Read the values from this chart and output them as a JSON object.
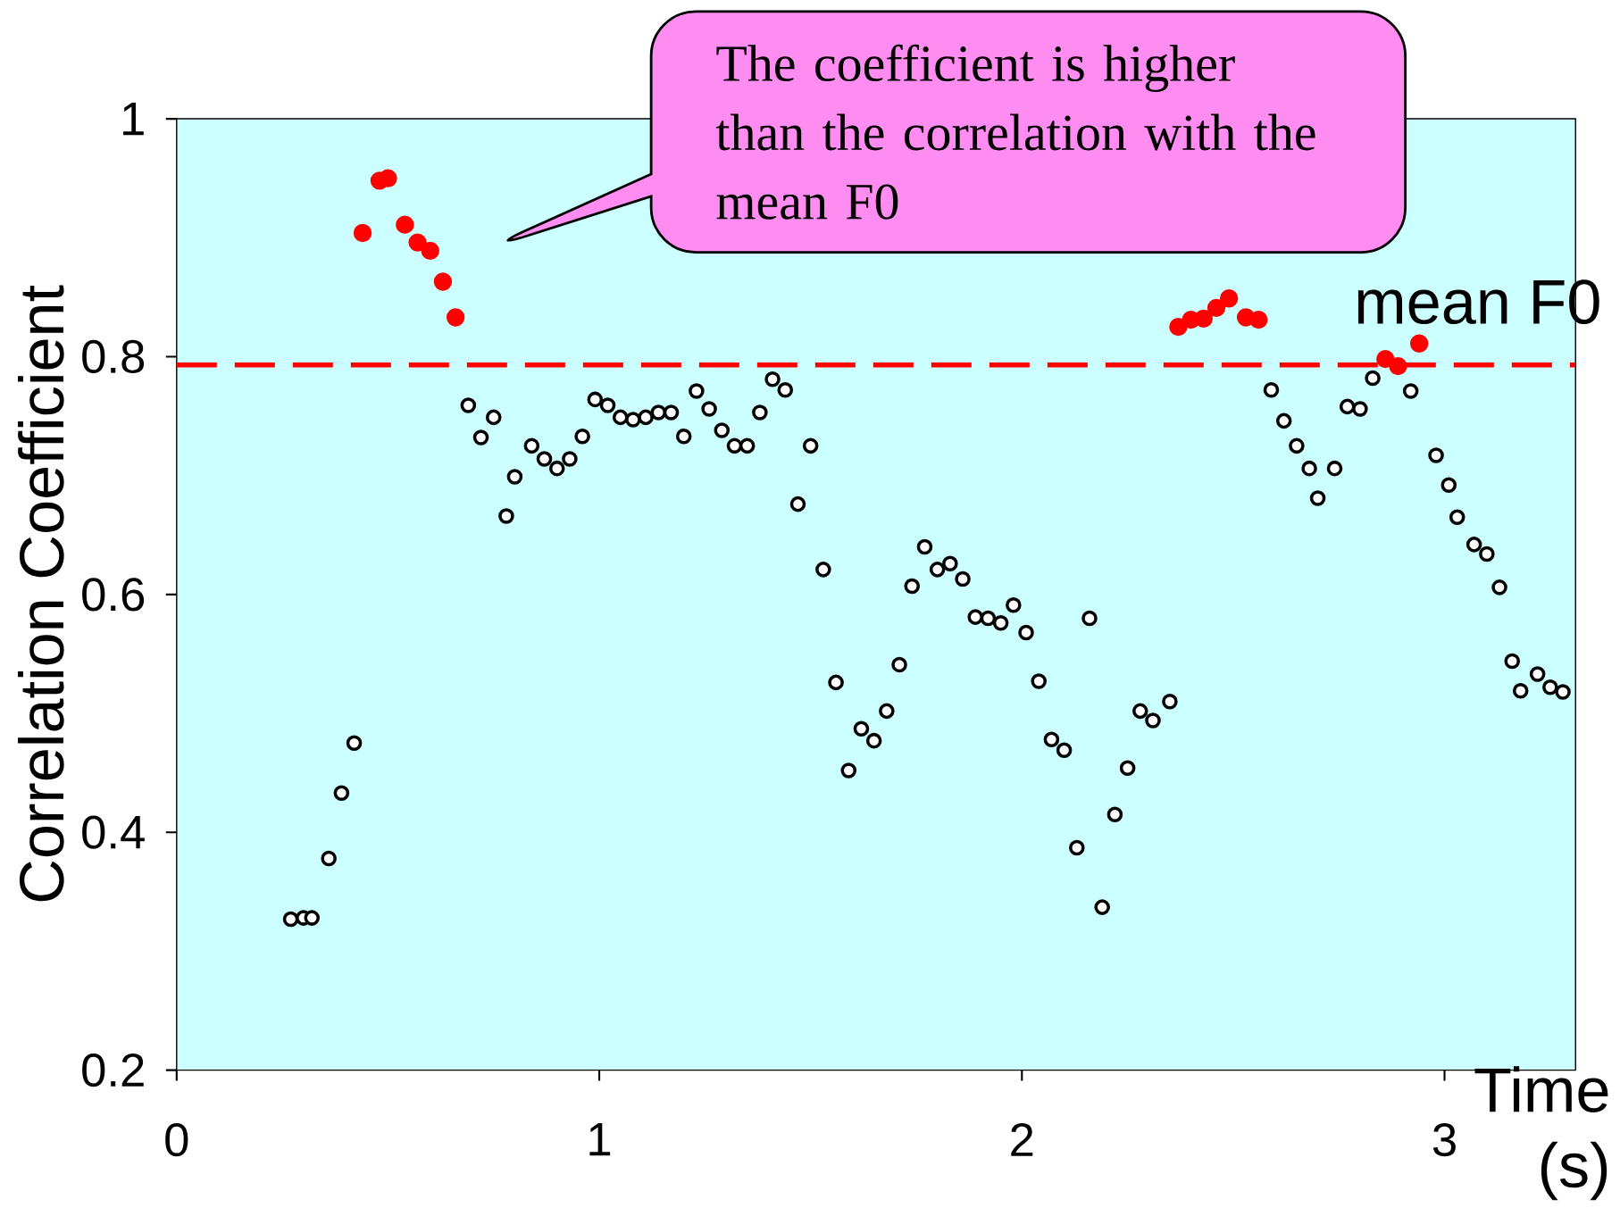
{
  "chart_data": {
    "type": "scatter",
    "xlabel": "Time (s)",
    "ylabel": "Correlation Coefficient",
    "xlim": [
      0,
      3.31
    ],
    "ylim": [
      0.2,
      1
    ],
    "xticks": [
      0,
      1,
      2,
      3
    ],
    "yticks": [
      0.2,
      0.4,
      0.6,
      0.8,
      1
    ],
    "marker": "circle",
    "grid": false,
    "ref_lines": [
      {
        "axis": "y",
        "value": 0.793,
        "label": "mean F0",
        "color": "#ff0000",
        "line_style": "dashed"
      }
    ],
    "annotations": [
      "The coefficient is higher than the correlation with the mean F0"
    ],
    "series": [
      {
        "color": "#ff0000",
        "x": [
          0.44,
          0.48,
          0.5,
          0.54,
          0.57,
          0.6,
          0.63,
          0.66,
          2.37,
          2.4,
          2.43,
          2.46,
          2.49,
          2.53,
          2.56,
          2.86,
          2.89,
          2.94
        ],
        "values": [
          0.904,
          0.948,
          0.95,
          0.911,
          0.896,
          0.889,
          0.863,
          0.833,
          0.825,
          0.831,
          0.832,
          0.841,
          0.849,
          0.833,
          0.831,
          0.798,
          0.792,
          0.811
        ]
      },
      {
        "color": "#000000",
        "x": [
          0.27,
          0.3,
          0.32,
          0.36,
          0.39,
          0.42,
          0.69,
          0.72,
          0.75,
          0.78,
          0.8,
          0.84,
          0.87,
          0.9,
          0.93,
          0.96,
          0.99,
          1.02,
          1.05,
          1.08,
          1.11,
          1.14,
          1.17,
          1.2,
          1.23,
          1.26,
          1.29,
          1.32,
          1.35,
          1.38,
          1.41,
          1.44,
          1.47,
          1.5,
          1.53,
          1.56,
          1.59,
          1.62,
          1.65,
          1.68,
          1.71,
          1.74,
          1.77,
          1.8,
          1.83,
          1.86,
          1.89,
          1.92,
          1.95,
          1.98,
          2.01,
          2.04,
          2.07,
          2.1,
          2.13,
          2.16,
          2.19,
          2.22,
          2.25,
          2.28,
          2.31,
          2.35,
          2.59,
          2.62,
          2.65,
          2.68,
          2.7,
          2.74,
          2.77,
          2.8,
          2.83,
          2.92,
          2.98,
          3.01,
          3.03,
          3.07,
          3.1,
          3.13,
          3.16,
          3.18,
          3.22,
          3.25,
          3.28
        ],
        "values": [
          0.327,
          0.328,
          0.328,
          0.378,
          0.433,
          0.475,
          0.759,
          0.732,
          0.749,
          0.666,
          0.699,
          0.725,
          0.714,
          0.706,
          0.714,
          0.733,
          0.764,
          0.759,
          0.749,
          0.747,
          0.749,
          0.753,
          0.753,
          0.733,
          0.771,
          0.756,
          0.738,
          0.725,
          0.725,
          0.753,
          0.781,
          0.772,
          0.676,
          0.725,
          0.621,
          0.526,
          0.452,
          0.487,
          0.477,
          0.502,
          0.541,
          0.607,
          0.64,
          0.621,
          0.626,
          0.613,
          0.581,
          0.58,
          0.576,
          0.591,
          0.568,
          0.527,
          0.478,
          0.469,
          0.387,
          0.58,
          0.337,
          0.415,
          0.454,
          0.502,
          0.494,
          0.51,
          0.772,
          0.746,
          0.725,
          0.706,
          0.681,
          0.706,
          0.758,
          0.756,
          0.782,
          0.771,
          0.717,
          0.692,
          0.665,
          0.642,
          0.634,
          0.606,
          0.544,
          0.519,
          0.533,
          0.522,
          0.518
        ]
      }
    ]
  }
}
